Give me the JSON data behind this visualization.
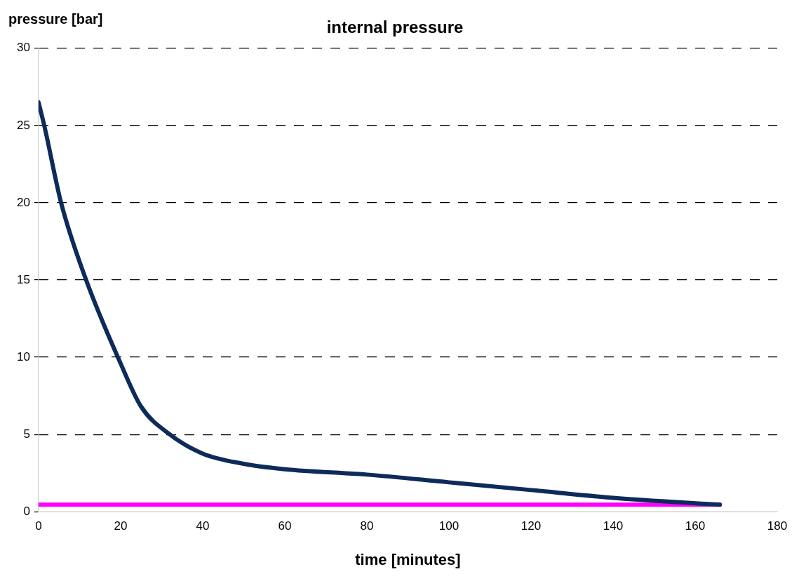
{
  "chart_data": {
    "type": "line",
    "title": "internal pressure",
    "xlabel": "time [minutes]",
    "ylabel": "pressure [bar]",
    "xlim": [
      0,
      180
    ],
    "xticks": [
      0,
      20,
      40,
      60,
      80,
      100,
      120,
      140,
      160,
      180
    ],
    "ylim": [
      0,
      30
    ],
    "yticks": [
      0,
      5,
      10,
      15,
      20,
      25,
      30
    ],
    "grid": "y",
    "legend": false,
    "marker": "none",
    "line_style": "solid",
    "series": [
      {
        "color": "#0d2b5a",
        "x": [
          0,
          1.4,
          5.5,
          11.6,
          20,
          25,
          32,
          40,
          50,
          60,
          80,
          100,
          120,
          140,
          166
        ],
        "values": [
          26.5,
          25,
          20,
          15,
          9.6,
          6.8,
          5,
          3.76,
          3.1,
          2.75,
          2.4,
          1.9,
          1.4,
          0.9,
          0.45
        ]
      },
      {
        "color": "#ff00ff",
        "x": [
          0,
          166
        ],
        "values": [
          0.45,
          0.45
        ]
      }
    ]
  }
}
